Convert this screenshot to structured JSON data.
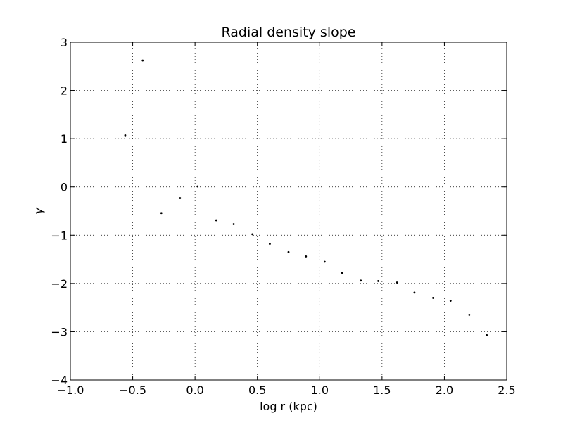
{
  "chart_data": {
    "type": "scatter",
    "title": "Radial density slope",
    "xlabel": "log r (kpc)",
    "ylabel": "γ",
    "xlim": [
      -1.0,
      2.5
    ],
    "ylim": [
      -4,
      3
    ],
    "x_ticks": [
      -1.0,
      -0.5,
      0.0,
      0.5,
      1.0,
      1.5,
      2.0,
      2.5
    ],
    "x_tick_labels": [
      "−1.0",
      "−0.5",
      "0.0",
      "0.5",
      "1.0",
      "1.5",
      "2.0",
      "2.5"
    ],
    "y_ticks": [
      -4,
      -3,
      -2,
      -1,
      0,
      1,
      2,
      3
    ],
    "y_tick_labels": [
      "−4",
      "−3",
      "−2",
      "−1",
      "0",
      "1",
      "2",
      "3"
    ],
    "grid": true,
    "marker_color": "#000000",
    "series": [
      {
        "x": [
          -0.56,
          -0.42,
          -0.27,
          -0.12,
          0.02,
          0.17,
          0.31,
          0.46,
          0.6,
          0.75,
          0.89,
          1.04,
          1.18,
          1.33,
          1.47,
          1.62,
          1.76,
          1.91,
          2.05,
          2.2,
          2.34
        ],
        "y": [
          1.07,
          2.62,
          -0.54,
          -0.23,
          0.01,
          -0.69,
          -0.77,
          -0.98,
          -1.18,
          -1.35,
          -1.44,
          -1.55,
          -1.78,
          -1.94,
          -1.95,
          -1.98,
          -2.19,
          -2.3,
          -2.36,
          -2.65,
          -3.07
        ]
      }
    ]
  }
}
